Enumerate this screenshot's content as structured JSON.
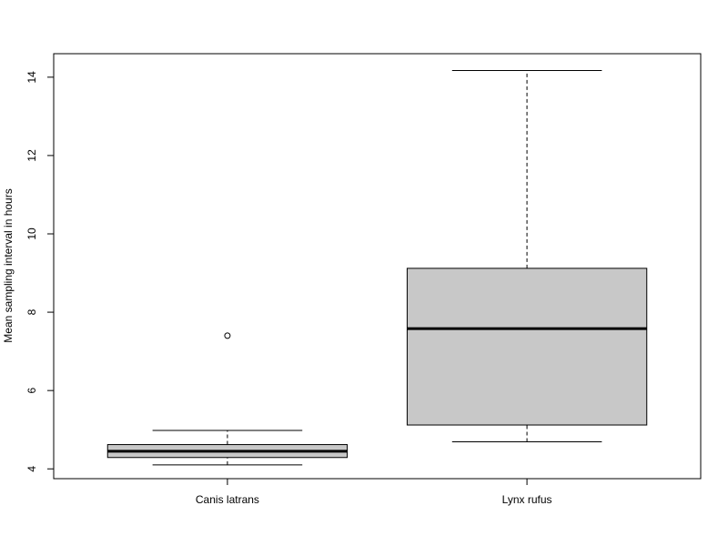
{
  "chart_data": {
    "type": "boxplot",
    "title": "",
    "xlabel": "",
    "ylabel": "Mean sampling interval in hours",
    "ylim": [
      3.75,
      14.6
    ],
    "yticks": [
      4,
      6,
      8,
      10,
      12,
      14
    ],
    "grid": false,
    "box_fill": "#c8c8c8",
    "categories": [
      "Canis latrans",
      "Lynx rufus"
    ],
    "boxes": [
      {
        "category": "Canis latrans",
        "whisker_low": 4.1,
        "q1": 4.29,
        "median": 4.45,
        "q3": 4.62,
        "whisker_high": 4.98,
        "outliers": [
          7.4
        ]
      },
      {
        "category": "Lynx rufus",
        "whisker_low": 4.69,
        "q1": 5.12,
        "median": 7.58,
        "q3": 9.12,
        "whisker_high": 14.17,
        "outliers": []
      }
    ]
  }
}
